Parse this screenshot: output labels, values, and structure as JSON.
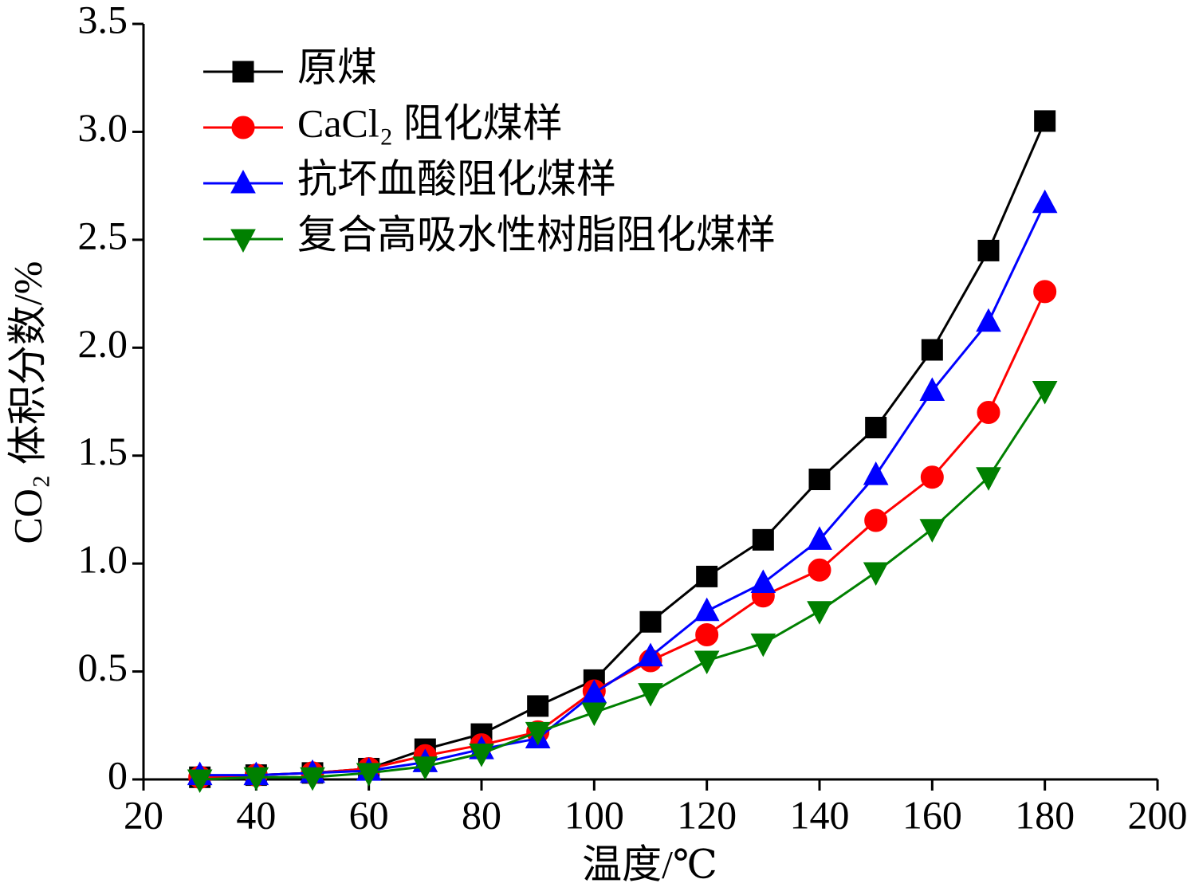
{
  "chart_data": {
    "type": "line",
    "xlabel": "温度/℃",
    "ylabel": "CO₂ 体积分数/%",
    "x": [
      30,
      40,
      50,
      60,
      70,
      80,
      90,
      100,
      110,
      120,
      130,
      140,
      150,
      160,
      170,
      180
    ],
    "series": [
      {
        "name": "原煤",
        "color": "#000000",
        "marker": "square",
        "values": [
          0.01,
          0.02,
          0.03,
          0.05,
          0.14,
          0.21,
          0.34,
          0.46,
          0.73,
          0.94,
          1.11,
          1.39,
          1.63,
          1.99,
          2.45,
          3.05
        ]
      },
      {
        "name": "CaCl₂ 阻化煤样",
        "color": "#ff0000",
        "marker": "circle",
        "values": [
          0.01,
          0.02,
          0.03,
          0.05,
          0.11,
          0.16,
          0.22,
          0.41,
          0.55,
          0.67,
          0.85,
          0.97,
          1.2,
          1.4,
          1.7,
          2.26
        ]
      },
      {
        "name": "抗坏血酸阻化煤样",
        "color": "#0000ff",
        "marker": "triangle-up",
        "values": [
          0.02,
          0.02,
          0.03,
          0.04,
          0.08,
          0.14,
          0.19,
          0.4,
          0.57,
          0.78,
          0.91,
          1.11,
          1.41,
          1.8,
          2.12,
          2.67
        ]
      },
      {
        "name": "复合高吸水性树脂阻化煤样",
        "color": "#008000",
        "marker": "triangle-down",
        "values": [
          0,
          0.01,
          0.01,
          0.03,
          0.06,
          0.12,
          0.22,
          0.31,
          0.4,
          0.55,
          0.63,
          0.78,
          0.96,
          1.16,
          1.4,
          1.8
        ]
      }
    ],
    "xlim": [
      20,
      200
    ],
    "xticks": [
      20,
      40,
      60,
      80,
      100,
      120,
      140,
      160,
      180,
      200
    ],
    "ylim": [
      0,
      3.5
    ],
    "yticks": [
      0,
      0.5,
      {
        "value": 1,
        "label": "1.0"
      },
      1.5,
      {
        "value": 2,
        "label": "2.0"
      },
      2.5,
      {
        "value": 3,
        "label": "3.0"
      },
      3.5
    ],
    "legend": "upper left"
  }
}
